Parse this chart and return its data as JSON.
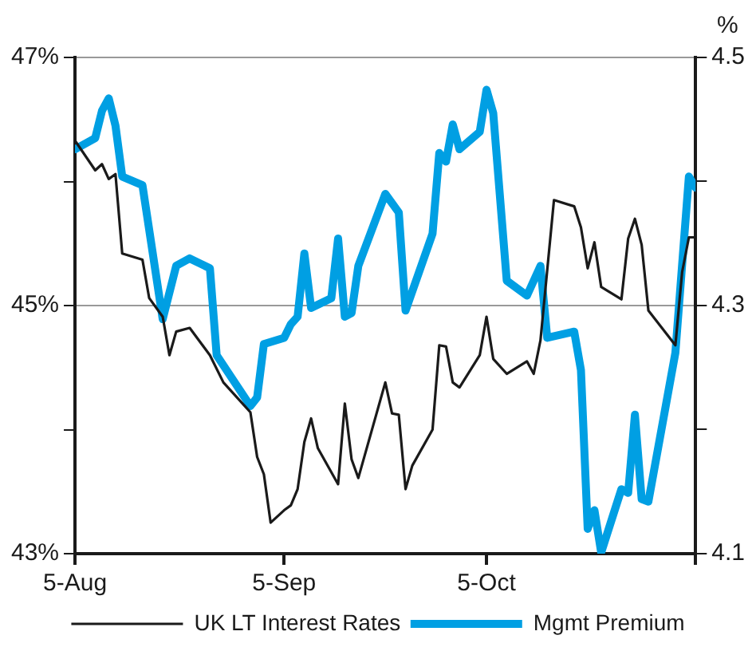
{
  "chart_data": {
    "type": "line",
    "y2label": "%",
    "xlim": [
      "--08-05",
      "--11-05"
    ],
    "xticks": [
      {
        "value": "--08-05",
        "label": "5-Aug"
      },
      {
        "value": "--09-05",
        "label": "5-Sep"
      },
      {
        "value": "--10-05",
        "label": "5-Oct"
      },
      {
        "value": "--11-05",
        "label": null
      }
    ],
    "ylim": [
      43,
      47
    ],
    "yticks": [
      {
        "value": 43,
        "label": "43%"
      },
      {
        "value": 44,
        "label": null
      },
      {
        "value": 45,
        "label": "45%"
      },
      {
        "value": 46,
        "label": null
      },
      {
        "value": 47,
        "label": "47%"
      }
    ],
    "y2lim": [
      4.1,
      4.5
    ],
    "y2ticks": [
      4.1,
      {
        "value": 4.2,
        "label": null
      },
      4.3,
      {
        "value": 4.4,
        "label": null
      },
      4.5
    ],
    "grid": "y",
    "legend": "bottom",
    "marker": "none",
    "line_style": "solid",
    "series": [
      {
        "name": "Mgmt Premium",
        "color": "#009fe3",
        "x": [
          "--08-05",
          "--08-08",
          "--08-09",
          "--08-10",
          "--08-11",
          "--08-12",
          "--08-15",
          "--08-18",
          "--08-20",
          "--08-22",
          "--08-25",
          "--08-26",
          "--08-31",
          "--09-01",
          "--09-02",
          "--09-05",
          "--09-06",
          "--09-07",
          "--09-08",
          "--09-09",
          "--09-12",
          "--09-13",
          "--09-14",
          "--09-15",
          "--09-16",
          "--09-20",
          "--09-22",
          "--09-23",
          "--09-27",
          "--09-28",
          "--09-29",
          "--09-30",
          "--10-01",
          "--10-04",
          "--10-05",
          "--10-06",
          "--10-08",
          "--10-11",
          "--10-13",
          "--10-14",
          "--10-18",
          "--10-19",
          "--10-20",
          "--10-21",
          "--10-22",
          "--10-25",
          "--10-26",
          "--10-27",
          "--10-28",
          "--10-29",
          "--11-02",
          "--11-04",
          "--11-05"
        ],
        "values": [
          46.26,
          46.35,
          46.57,
          46.67,
          46.45,
          46.04,
          45.97,
          44.89,
          45.32,
          45.38,
          45.3,
          44.6,
          44.19,
          44.26,
          44.69,
          44.74,
          44.85,
          44.91,
          45.42,
          44.98,
          45.06,
          45.54,
          44.91,
          44.94,
          45.32,
          45.9,
          45.75,
          44.96,
          45.58,
          46.23,
          46.16,
          46.46,
          46.26,
          46.4,
          46.74,
          46.55,
          45.2,
          45.08,
          45.32,
          44.74,
          44.79,
          44.48,
          43.2,
          43.35,
          43.01,
          43.52,
          43.49,
          44.12,
          43.44,
          43.42,
          44.62,
          46.04,
          45.95
        ]
      },
      {
        "name": "UK LT Interest Rates",
        "color": "#1a1a1a",
        "axis": "y2",
        "x": [
          "--08-05",
          "--08-08",
          "--08-09",
          "--08-10",
          "--08-11",
          "--08-12",
          "--08-15",
          "--08-16",
          "--08-18",
          "--08-19",
          "--08-20",
          "--08-22",
          "--08-25",
          "--08-27",
          "--08-31",
          "--09-01",
          "--09-02",
          "--09-03",
          "--09-05",
          "--09-06",
          "--09-07",
          "--09-08",
          "--09-09",
          "--09-10",
          "--09-13",
          "--09-14",
          "--09-15",
          "--09-16",
          "--09-20",
          "--09-21",
          "--09-22",
          "--09-23",
          "--09-24",
          "--09-27",
          "--09-28",
          "--09-29",
          "--09-30",
          "--10-01",
          "--10-04",
          "--10-05",
          "--10-06",
          "--10-08",
          "--10-11",
          "--10-12",
          "--10-13",
          "--10-15",
          "--10-18",
          "--10-19",
          "--10-20",
          "--10-21",
          "--10-22",
          "--10-25",
          "--10-26",
          "--10-27",
          "--10-28",
          "--10-29",
          "--11-02",
          "--11-03",
          "--11-04",
          "--11-05"
        ],
        "values": [
          4.433,
          4.409,
          4.414,
          4.402,
          4.406,
          4.342,
          4.337,
          4.306,
          4.291,
          4.26,
          4.279,
          4.282,
          4.26,
          4.238,
          4.214,
          4.178,
          4.164,
          4.125,
          4.135,
          4.139,
          4.152,
          4.19,
          4.209,
          4.185,
          4.156,
          4.221,
          4.176,
          4.161,
          4.238,
          4.213,
          4.212,
          4.152,
          4.171,
          4.2,
          4.268,
          4.267,
          4.238,
          4.234,
          4.26,
          4.291,
          4.257,
          4.245,
          4.255,
          4.245,
          4.272,
          4.385,
          4.38,
          4.363,
          4.33,
          4.351,
          4.315,
          4.305,
          4.354,
          4.37,
          4.349,
          4.296,
          4.268,
          4.327,
          4.355,
          4.355
        ]
      }
    ]
  }
}
